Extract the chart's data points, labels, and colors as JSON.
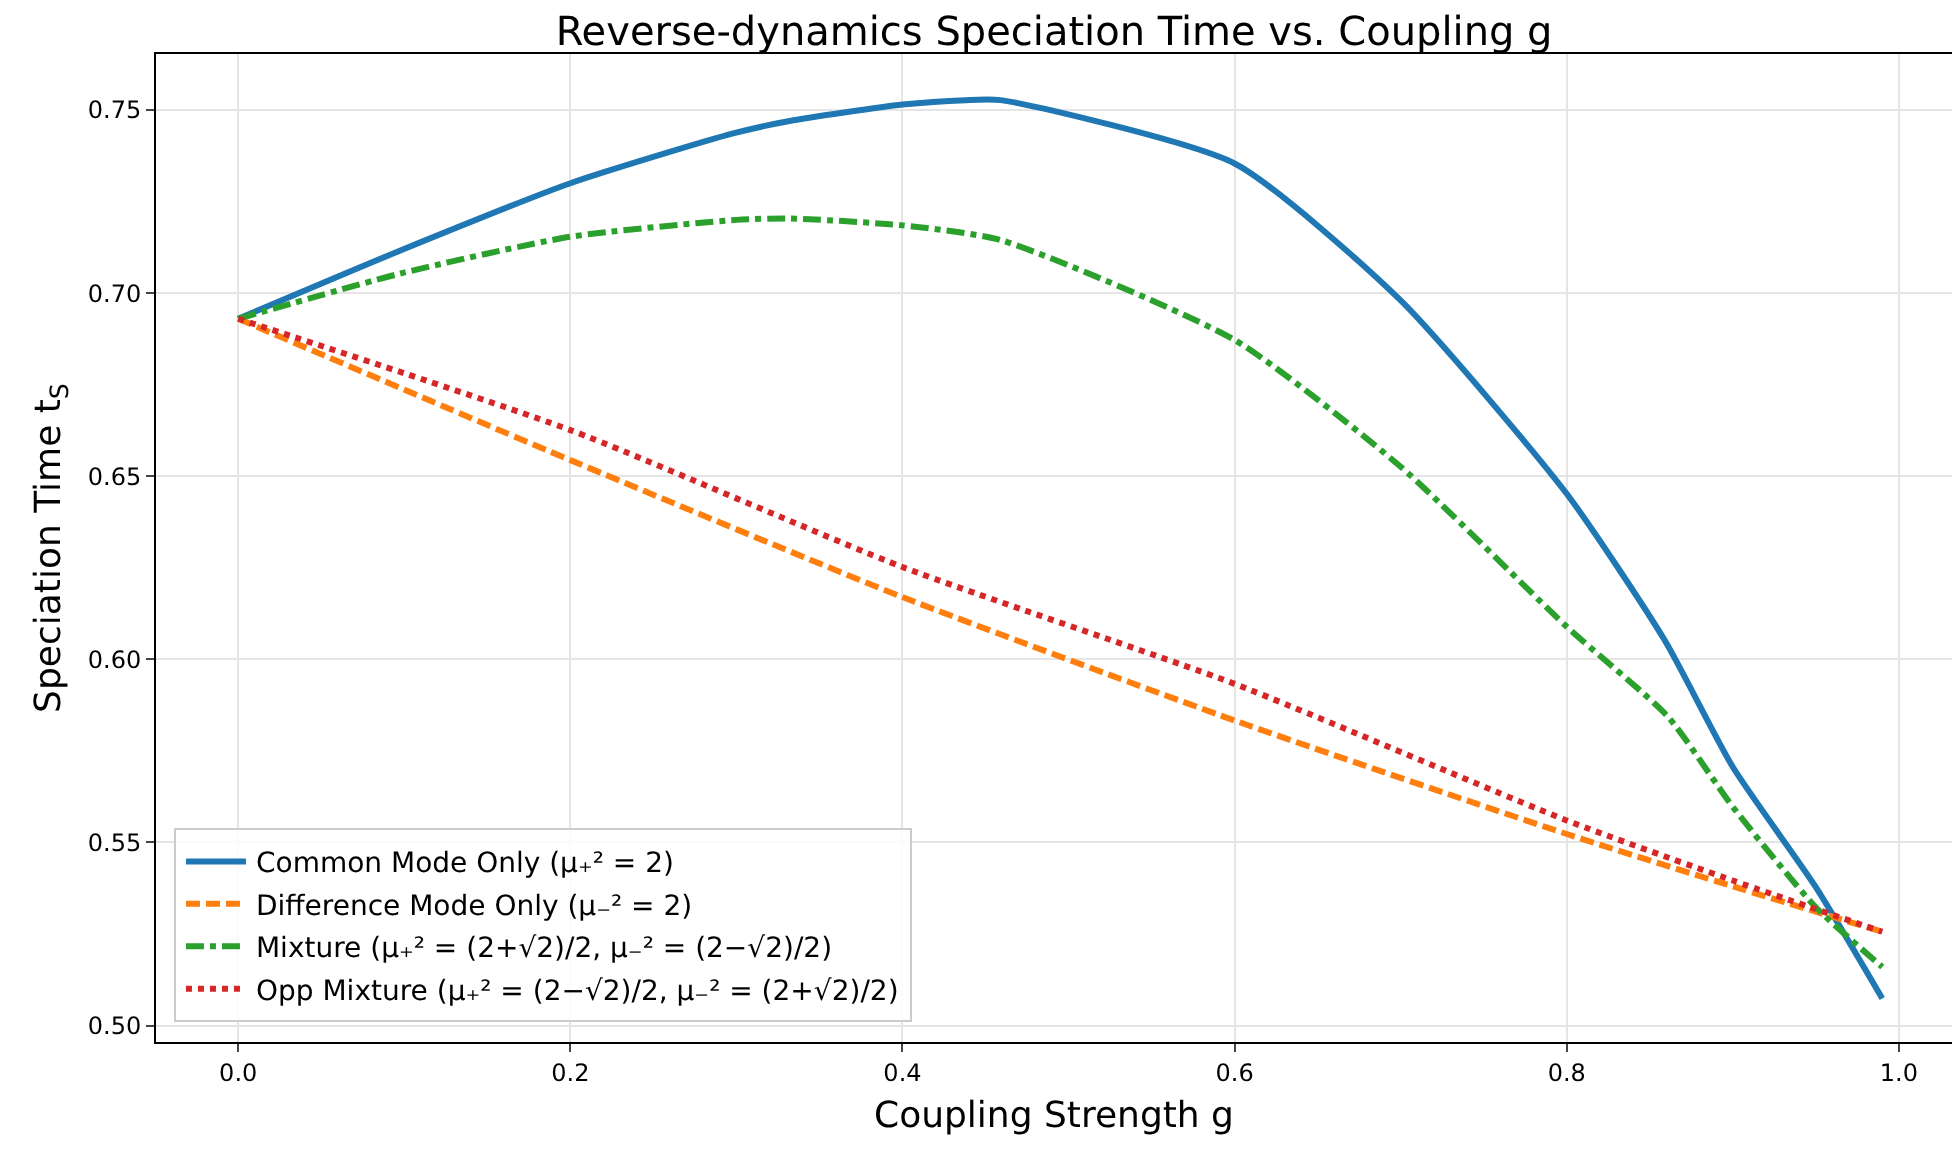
{
  "chart_data": {
    "type": "line",
    "title": "Reverse-dynamics Speciation Time vs. Coupling g",
    "xlabel": "Coupling Strength g",
    "ylabel": "Speciation Time t$_{S}$",
    "x": [
      0,
      0.098,
      0.2,
      0.298,
      0.332,
      0.4,
      0.438,
      0.459,
      0.6,
      0.7,
      0.8,
      0.859,
      0.9,
      0.95,
      0.99
    ],
    "series": [
      {
        "name": "Common Mode Only (μ₊² = 2)",
        "color": "#1f77b4",
        "line_style": "solid",
        "values": [
          0.693,
          0.7117,
          0.73,
          0.7436,
          0.747,
          0.7515,
          0.7527,
          0.7527,
          0.7354,
          0.698,
          0.6452,
          0.6052,
          0.5706,
          0.5378,
          0.5074
        ]
      },
      {
        "name": "Difference Mode Only (μ₋² = 2)",
        "color": "#ff7f0e",
        "line_style": "dashed",
        "x": [
          0,
          0.2,
          0.4,
          0.6,
          0.8,
          0.9,
          0.99
        ],
        "values": [
          0.693,
          0.6544,
          0.617,
          0.5833,
          0.5523,
          0.538,
          0.5256
        ]
      },
      {
        "name": "Mixture (μ₊² = (2+√2)/2, μ₋² = (2−√2)/2)",
        "color": "#2ca02c",
        "line_style": "dashdot",
        "x": [
          0,
          0.098,
          0.2,
          0.3,
          0.332,
          0.4,
          0.459,
          0.6,
          0.7,
          0.8,
          0.861,
          0.9,
          0.95,
          0.99
        ],
        "values": [
          0.693,
          0.7054,
          0.7154,
          0.72,
          0.7204,
          0.7185,
          0.7145,
          0.6872,
          0.6526,
          0.6089,
          0.5843,
          0.5597,
          0.5323,
          0.516
        ]
      },
      {
        "name": "Opp Mixture (μ₊² = (2−√2)/2, μ₋² = (2+√2)/2)",
        "color": "#d62728",
        "line_style": "dotted",
        "x": [
          0,
          0.2,
          0.4,
          0.6,
          0.8,
          0.9,
          0.99
        ],
        "values": [
          0.693,
          0.6626,
          0.6252,
          0.5933,
          0.556,
          0.5396,
          0.5256
        ]
      }
    ],
    "xlim": [
      -0.0495,
      1.032
    ],
    "ylim": [
      0.4955,
      0.7653
    ],
    "xticks": [
      {
        "value": 0,
        "label": "0.0"
      },
      0.2,
      0.4,
      0.6,
      0.8,
      {
        "value": 1,
        "label": "1.0"
      }
    ],
    "yticks": [
      {
        "value": 0.5,
        "label": "0.50"
      },
      0.55,
      {
        "value": 0.6,
        "label": "0.60"
      },
      0.65,
      {
        "value": 0.7,
        "label": "0.70"
      },
      0.75
    ],
    "grid": true,
    "legend": "bottom left",
    "marker": "none"
  }
}
